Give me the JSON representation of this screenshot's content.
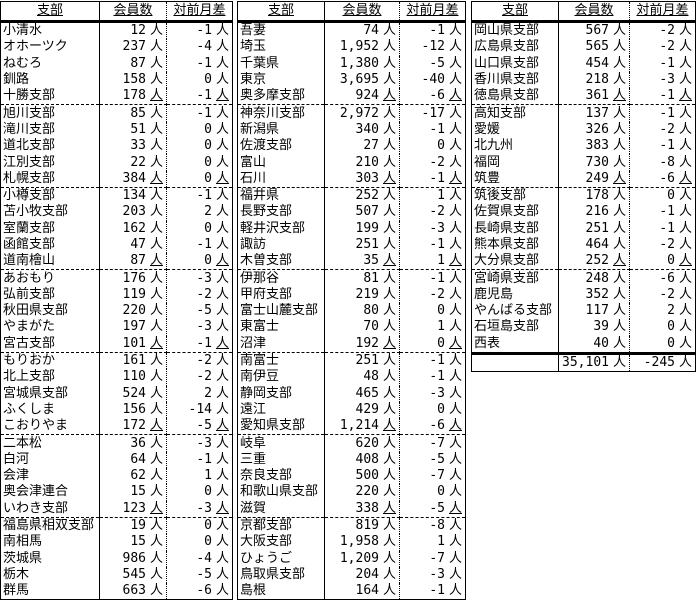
{
  "headers": {
    "branch": "支部",
    "members": "会員数",
    "diff": "対前月差"
  },
  "unit": "人",
  "tables": [
    {
      "rows": [
        [
          "小清水",
          "12",
          "-1"
        ],
        [
          "オホーツク",
          "237",
          "-4"
        ],
        [
          "ねむろ",
          "87",
          "-1"
        ],
        [
          "釧路",
          "158",
          "0"
        ],
        [
          "十勝支部",
          "178",
          "-1"
        ],
        [
          "旭川支部",
          "85",
          "-1"
        ],
        [
          "滝川支部",
          "51",
          "0"
        ],
        [
          "道北支部",
          "33",
          "0"
        ],
        [
          "江別支部",
          "22",
          "0"
        ],
        [
          "札幌支部",
          "384",
          "0"
        ],
        [
          "小樽支部",
          "134",
          "-1"
        ],
        [
          "苫小牧支部",
          "203",
          "2"
        ],
        [
          "室蘭支部",
          "162",
          "0"
        ],
        [
          "函館支部",
          "47",
          "-1"
        ],
        [
          "道南檜山",
          "87",
          "0"
        ],
        [
          "あおもり",
          "176",
          "-3"
        ],
        [
          "弘前支部",
          "119",
          "-2"
        ],
        [
          "秋田県支部",
          "220",
          "-5"
        ],
        [
          "やまがた",
          "197",
          "-3"
        ],
        [
          "宮古支部",
          "101",
          "-1"
        ],
        [
          "もりおか",
          "161",
          "-2"
        ],
        [
          "北上支部",
          "110",
          "-2"
        ],
        [
          "宮城県支部",
          "524",
          "2"
        ],
        [
          "ふくしま",
          "156",
          "-14"
        ],
        [
          "こおりやま",
          "172",
          "-5"
        ],
        [
          "二本松",
          "36",
          "-3"
        ],
        [
          "白河",
          "64",
          "-1"
        ],
        [
          "会津",
          "62",
          "1"
        ],
        [
          "奥会津連合",
          "15",
          "0"
        ],
        [
          "いわき支部",
          "123",
          "-3"
        ],
        [
          "福島県相双支部",
          "19",
          "0"
        ],
        [
          "南相馬",
          "15",
          "0"
        ],
        [
          "茨城県",
          "986",
          "-4"
        ],
        [
          "栃木",
          "545",
          "-5"
        ],
        [
          "群馬",
          "663",
          "-6"
        ]
      ]
    },
    {
      "rows": [
        [
          "吾妻",
          "74",
          "-1"
        ],
        [
          "埼玉",
          "1,952",
          "-12"
        ],
        [
          "千葉県",
          "1,380",
          "-5"
        ],
        [
          "東京",
          "3,695",
          "-40"
        ],
        [
          "奥多摩支部",
          "924",
          "-6"
        ],
        [
          "神奈川支部",
          "2,972",
          "-17"
        ],
        [
          "新潟県",
          "340",
          "-1"
        ],
        [
          "佐渡支部",
          "27",
          "0"
        ],
        [
          "富山",
          "210",
          "-2"
        ],
        [
          "石川",
          "303",
          "-1"
        ],
        [
          "福井県",
          "252",
          "1"
        ],
        [
          "長野支部",
          "507",
          "-2"
        ],
        [
          "軽井沢支部",
          "199",
          "-3"
        ],
        [
          "諏訪",
          "251",
          "-1"
        ],
        [
          "木曽支部",
          "35",
          "1"
        ],
        [
          "伊那谷",
          "81",
          "-1"
        ],
        [
          "甲府支部",
          "219",
          "-2"
        ],
        [
          "富士山麓支部",
          "80",
          "0"
        ],
        [
          "東富士",
          "70",
          "1"
        ],
        [
          "沼津",
          "192",
          "0"
        ],
        [
          "南富士",
          "251",
          "-1"
        ],
        [
          "南伊豆",
          "48",
          "-1"
        ],
        [
          "静岡支部",
          "465",
          "-3"
        ],
        [
          "遠江",
          "429",
          "0"
        ],
        [
          "愛知県支部",
          "1,214",
          "-6"
        ],
        [
          "岐阜",
          "620",
          "-7"
        ],
        [
          "三重",
          "408",
          "-5"
        ],
        [
          "奈良支部",
          "500",
          "-7"
        ],
        [
          "和歌山県支部",
          "220",
          "0"
        ],
        [
          "滋賀",
          "338",
          "-5"
        ],
        [
          "京都支部",
          "819",
          "-8"
        ],
        [
          "大阪支部",
          "1,958",
          "1"
        ],
        [
          "ひょうご",
          "1,209",
          "-7"
        ],
        [
          "鳥取県支部",
          "204",
          "-3"
        ],
        [
          "島根",
          "164",
          "-1"
        ]
      ]
    },
    {
      "rows": [
        [
          "岡山県支部",
          "567",
          "-2"
        ],
        [
          "広島県支部",
          "565",
          "-2"
        ],
        [
          "山口県支部",
          "454",
          "-1"
        ],
        [
          "香川県支部",
          "218",
          "-3"
        ],
        [
          "徳島県支部",
          "361",
          "-1"
        ],
        [
          "高知支部",
          "137",
          "-1"
        ],
        [
          "愛媛",
          "326",
          "-2"
        ],
        [
          "北九州",
          "383",
          "-1"
        ],
        [
          "福岡",
          "730",
          "-8"
        ],
        [
          "筑豊",
          "249",
          "-6"
        ],
        [
          "筑後支部",
          "178",
          "0"
        ],
        [
          "佐賀県支部",
          "216",
          "-1"
        ],
        [
          "長崎県支部",
          "251",
          "-1"
        ],
        [
          "熊本県支部",
          "464",
          "-2"
        ],
        [
          "大分県支部",
          "252",
          "0"
        ],
        [
          "宮崎県支部",
          "248",
          "-6"
        ],
        [
          "鹿児島",
          "352",
          "-2"
        ],
        [
          "やんばる支部",
          "117",
          "2"
        ],
        [
          "石垣島支部",
          "39",
          "0"
        ],
        [
          "西表",
          "40",
          "0"
        ]
      ],
      "total": {
        "members": "35,101",
        "diff": "-245"
      }
    }
  ]
}
